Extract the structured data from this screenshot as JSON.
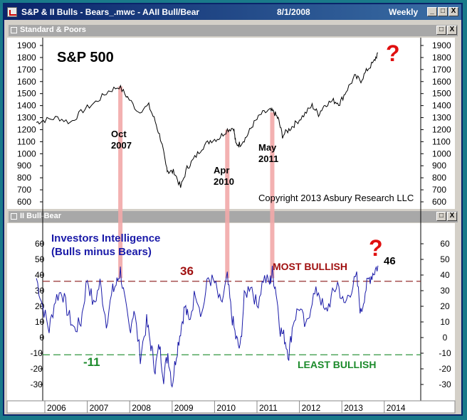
{
  "window": {
    "title": "S&P & II Bulls - Bears_.mwc - AAII Bull/Bear",
    "date": "8/1/2008",
    "period": "Weekly",
    "buttons": [
      "_",
      "□",
      "X"
    ]
  },
  "panels": {
    "top": {
      "name": "Standard & Poors"
    },
    "bottom": {
      "name": "II Bull-Bear"
    }
  },
  "chart_data": [
    {
      "type": "line",
      "title": "S&P 500",
      "ylim": [
        550,
        1950
      ],
      "yticks": [
        600,
        700,
        800,
        900,
        1000,
        1100,
        1200,
        1300,
        1400,
        1500,
        1600,
        1700,
        1800,
        1900
      ],
      "series": [
        {
          "name": "S&P 500",
          "x": [
            2005.8,
            2006.0,
            2006.3,
            2006.6,
            2006.9,
            2007.2,
            2007.5,
            2007.75,
            2007.95,
            2008.2,
            2008.45,
            2008.6,
            2008.75,
            2008.85,
            2008.92,
            2009.05,
            2009.2,
            2009.35,
            2009.5,
            2009.7,
            2009.9,
            2010.1,
            2010.3,
            2010.45,
            2010.5,
            2010.6,
            2010.75,
            2010.9,
            2011.1,
            2011.3,
            2011.4,
            2011.5,
            2011.6,
            2011.75,
            2011.9,
            2012.1,
            2012.3,
            2012.45,
            2012.6,
            2012.8,
            2012.95,
            2013.1,
            2013.3,
            2013.45,
            2013.6,
            2013.75,
            2013.85
          ],
          "y": [
            1260,
            1280,
            1300,
            1260,
            1360,
            1430,
            1520,
            1560,
            1470,
            1350,
            1400,
            1270,
            1100,
            900,
            850,
            850,
            720,
            880,
            950,
            1050,
            1110,
            1130,
            1200,
            1217,
            1080,
            1080,
            1140,
            1240,
            1330,
            1360,
            1345,
            1290,
            1150,
            1200,
            1250,
            1320,
            1400,
            1330,
            1410,
            1440,
            1420,
            1520,
            1640,
            1610,
            1700,
            1760,
            1840
          ]
        }
      ],
      "annotations": [
        {
          "label": [
            "Oct",
            "2007"
          ],
          "x": 2007.78
        },
        {
          "label": [
            "Apr",
            "2010"
          ],
          "x": 2010.3
        },
        {
          "label": [
            "May",
            "2011"
          ],
          "x": 2011.36
        }
      ],
      "copyright": "Copyright 2013 Asbury Research LLC",
      "marker": "?"
    },
    {
      "type": "line",
      "title": "Investors Intelligence",
      "subtitle": "(Bulls minus Bears)",
      "ylim": [
        -40,
        70
      ],
      "yticks": [
        -30,
        -20,
        -10,
        0,
        10,
        20,
        30,
        40,
        50,
        60
      ],
      "xticks": [
        "2006",
        "2007",
        "2008",
        "2009",
        "2010",
        "2011",
        "2012",
        "2013",
        "2014"
      ],
      "series": [
        {
          "name": "Investors Intelligence",
          "x": [
            2005.8,
            2005.95,
            2006.1,
            2006.25,
            2006.4,
            2006.55,
            2006.7,
            2006.85,
            2007.0,
            2007.15,
            2007.3,
            2007.45,
            2007.6,
            2007.7,
            2007.78,
            2007.9,
            2008.0,
            2008.1,
            2008.25,
            2008.4,
            2008.5,
            2008.6,
            2008.7,
            2008.8,
            2008.9,
            2009.0,
            2009.1,
            2009.2,
            2009.3,
            2009.4,
            2009.55,
            2009.7,
            2009.85,
            2010.0,
            2010.15,
            2010.3,
            2010.4,
            2010.5,
            2010.6,
            2010.7,
            2010.85,
            2011.0,
            2011.15,
            2011.3,
            2011.36,
            2011.45,
            2011.55,
            2011.65,
            2011.75,
            2011.85,
            2012.0,
            2012.15,
            2012.3,
            2012.45,
            2012.6,
            2012.75,
            2012.9,
            2013.05,
            2013.2,
            2013.35,
            2013.45,
            2013.55,
            2013.65,
            2013.75,
            2013.85
          ],
          "y": [
            38,
            20,
            5,
            25,
            30,
            15,
            5,
            10,
            38,
            20,
            35,
            10,
            30,
            35,
            43,
            20,
            5,
            18,
            -12,
            10,
            -5,
            -20,
            -5,
            -25,
            -10,
            -30,
            -10,
            5,
            20,
            10,
            30,
            15,
            38,
            35,
            20,
            38,
            15,
            0,
            -8,
            25,
            35,
            20,
            38,
            35,
            42,
            30,
            5,
            0,
            -11,
            10,
            20,
            5,
            25,
            30,
            15,
            25,
            35,
            20,
            30,
            38,
            15,
            30,
            38,
            42,
            46
          ]
        }
      ],
      "reference_lines": [
        {
          "value": 36,
          "label": "MOST BULLISH",
          "color": "#8b1a1a"
        },
        {
          "value": -11,
          "label": "LEAST BULLISH",
          "color": "#1a8a2a"
        }
      ],
      "value_labels": [
        "36",
        "-11",
        "46"
      ],
      "marker": "?"
    }
  ],
  "colors": {
    "title_text": "#000000",
    "ii_text": "#1a1aa8",
    "ii_line": "#1a1aa8",
    "most_bullish": "#a01010",
    "least_bullish": "#1a8a2a",
    "highlight": "#f2a8a8",
    "question": "#e01010"
  }
}
